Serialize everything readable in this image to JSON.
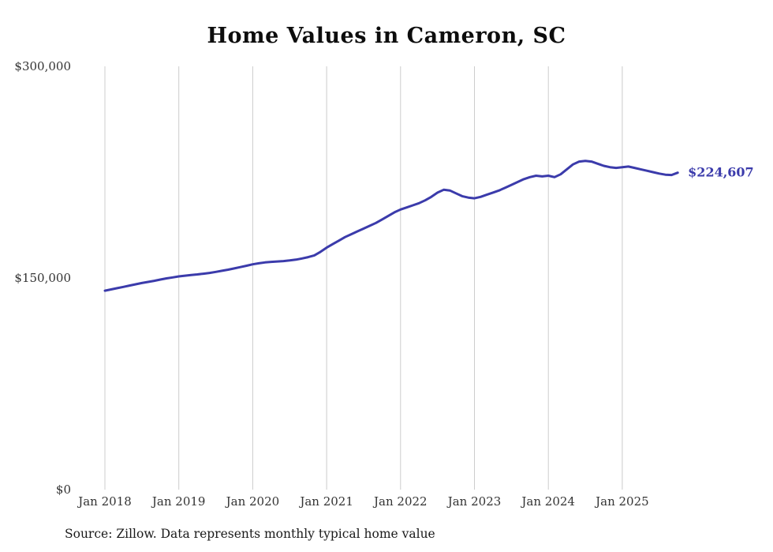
{
  "title": "Home Values in Cameron, SC",
  "source_note": "Source: Zillow. Data represents monthly typical home value",
  "end_label": "$224,607",
  "colors": {
    "line": "#3b3bab",
    "grid": "#cccccc",
    "axis_text": "#333333",
    "end_label": "#3b3bab"
  },
  "chart_data": {
    "type": "line",
    "title": "Home Values in Cameron, SC",
    "ylabel": "",
    "xlabel": "",
    "ylim": [
      0,
      300000
    ],
    "y_ticks": [
      0,
      150000,
      300000
    ],
    "y_tick_labels": [
      "$0",
      "$150,000",
      "$300,000"
    ],
    "x_tick_labels": [
      "Jan 2018",
      "Jan 2019",
      "Jan 2020",
      "Jan 2021",
      "Jan 2022",
      "Jan 2023",
      "Jan 2024",
      "Jan 2025"
    ],
    "x_start": "Jan 2018",
    "x_end": "Oct 2025",
    "grid": "vertical-only",
    "legend_position": "none",
    "end_value": 224607,
    "series": [
      {
        "name": "Typical home value",
        "values": [
          141000,
          141900,
          142800,
          143700,
          144600,
          145500,
          146400,
          147200,
          148000,
          148900,
          149700,
          150400,
          151100,
          151600,
          152100,
          152500,
          153000,
          153600,
          154300,
          155100,
          155900,
          156800,
          157700,
          158700,
          159700,
          160400,
          161000,
          161400,
          161700,
          162000,
          162400,
          163000,
          163800,
          164800,
          166000,
          168500,
          171500,
          174000,
          176500,
          179000,
          181000,
          183000,
          185000,
          187000,
          189000,
          191500,
          194000,
          196500,
          198500,
          200000,
          201500,
          203000,
          205000,
          207500,
          210500,
          212500,
          212000,
          210000,
          208000,
          207000,
          206500,
          207500,
          209000,
          210500,
          212000,
          214000,
          216000,
          218000,
          220000,
          221500,
          222500,
          222000,
          222500,
          221500,
          223500,
          227000,
          230500,
          232500,
          233000,
          232500,
          231000,
          229500,
          228500,
          228000,
          228500,
          229000,
          228000,
          227000,
          226000,
          225000,
          224000,
          223200,
          223000,
          224607
        ]
      }
    ]
  }
}
